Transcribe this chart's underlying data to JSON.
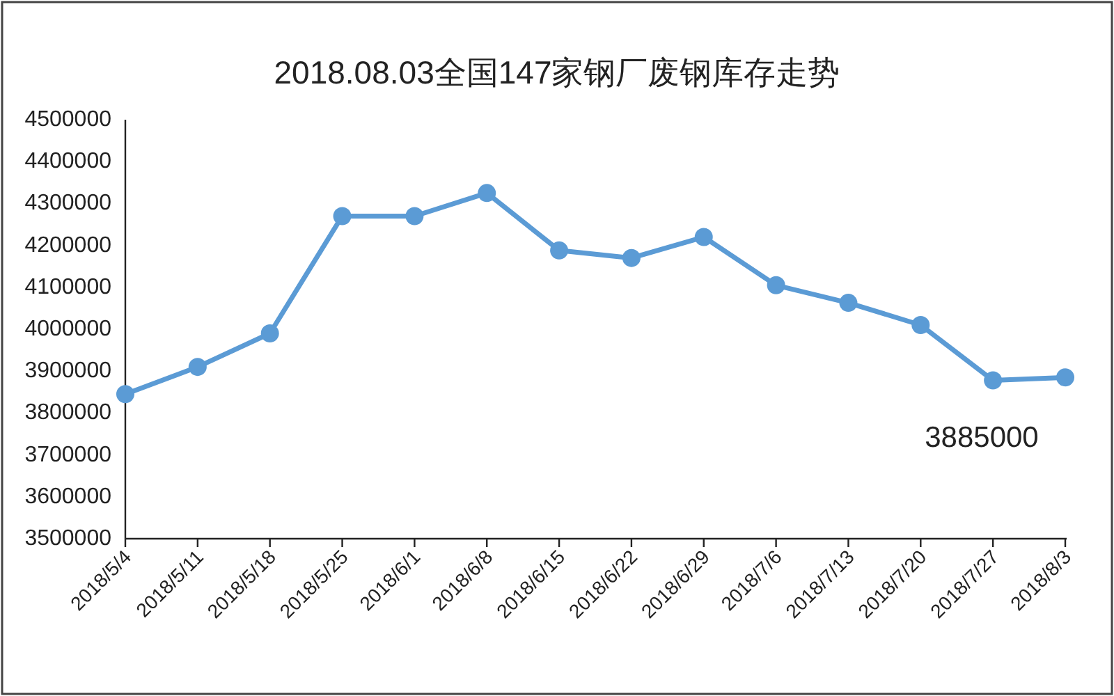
{
  "chart_data": {
    "type": "line",
    "title": "2018.08.03全国147家钢厂废钢库存走势",
    "categories": [
      "2018/5/4",
      "2018/5/11",
      "2018/5/18",
      "2018/5/25",
      "2018/6/1",
      "2018/6/8",
      "2018/6/15",
      "2018/6/22",
      "2018/6/29",
      "2018/7/6",
      "2018/7/13",
      "2018/7/20",
      "2018/7/27",
      "2018/8/3"
    ],
    "series": [
      {
        "color": "#5b9bd5",
        "values": [
          3845000,
          3910000,
          3990000,
          4270000,
          4270000,
          4325000,
          4188000,
          4170000,
          4220000,
          4105000,
          4063000,
          4010000,
          3878000,
          3885000
        ],
        "value_labels": [
          null,
          null,
          null,
          null,
          null,
          null,
          null,
          null,
          null,
          null,
          null,
          null,
          null,
          "3885000"
        ]
      }
    ],
    "ylim": [
      3500000,
      4500000
    ],
    "yticks": [
      3500000,
      3600000,
      3700000,
      3800000,
      3900000,
      4000000,
      4100000,
      4200000,
      4300000,
      4400000,
      4500000
    ],
    "marker": "circle",
    "line_style": "solid"
  }
}
